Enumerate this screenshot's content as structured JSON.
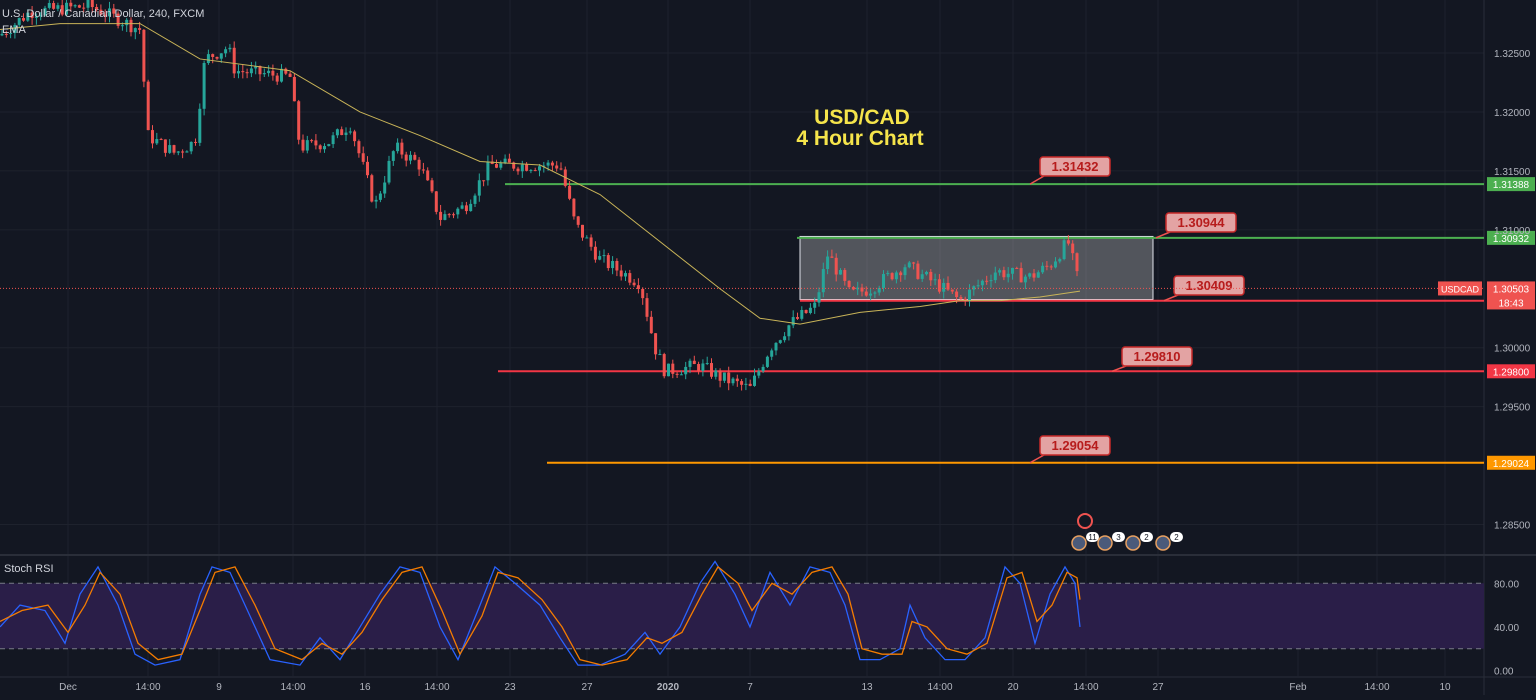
{
  "header": {
    "symbol_line": "U.S. Dollar / Canadian Dollar, 240, FXCM",
    "indicator": "EMA"
  },
  "chart_data": [
    {
      "type": "candlestick",
      "title": "USD/CAD",
      "subtitle": "4 Hour Chart",
      "x_ticks": [
        "Dec",
        "14:00",
        "9",
        "14:00",
        "16",
        "14:00",
        "23",
        "27",
        "2020",
        "7",
        "13",
        "14:00",
        "20",
        "14:00",
        "27",
        "Feb",
        "14:00",
        "10"
      ],
      "y_ticks": [
        "1.32500",
        "1.32000",
        "1.31500",
        "1.31000",
        "1.30000",
        "1.29500",
        "1.28500"
      ],
      "ylim": [
        1.2825,
        1.3295
      ],
      "ema_approx": [
        [
          0,
          1.327
        ],
        [
          60,
          1.3275
        ],
        [
          140,
          1.3275
        ],
        [
          200,
          1.3245
        ],
        [
          290,
          1.3235
        ],
        [
          360,
          1.32
        ],
        [
          420,
          1.318
        ],
        [
          480,
          1.3158
        ],
        [
          540,
          1.3155
        ],
        [
          600,
          1.313
        ],
        [
          660,
          1.309
        ],
        [
          720,
          1.305
        ],
        [
          760,
          1.3025
        ],
        [
          800,
          1.302
        ],
        [
          860,
          1.303
        ],
        [
          920,
          1.3035
        ],
        [
          960,
          1.304
        ],
        [
          1000,
          1.304
        ],
        [
          1040,
          1.3043
        ],
        [
          1080,
          1.3048
        ]
      ],
      "price_path": [
        [
          0,
          1.3265
        ],
        [
          30,
          1.3285
        ],
        [
          90,
          1.329
        ],
        [
          140,
          1.327
        ],
        [
          148,
          1.318
        ],
        [
          175,
          1.3165
        ],
        [
          195,
          1.3175
        ],
        [
          205,
          1.3245
        ],
        [
          228,
          1.3255
        ],
        [
          235,
          1.3235
        ],
        [
          290,
          1.323
        ],
        [
          300,
          1.317
        ],
        [
          330,
          1.3175
        ],
        [
          350,
          1.319
        ],
        [
          375,
          1.312
        ],
        [
          395,
          1.317
        ],
        [
          420,
          1.3155
        ],
        [
          440,
          1.311
        ],
        [
          465,
          1.312
        ],
        [
          490,
          1.3155
        ],
        [
          520,
          1.3155
        ],
        [
          560,
          1.3155
        ],
        [
          575,
          1.3105
        ],
        [
          600,
          1.3075
        ],
        [
          640,
          1.3055
        ],
        [
          655,
          1.3
        ],
        [
          665,
          1.298
        ],
        [
          700,
          1.2985
        ],
        [
          720,
          1.2975
        ],
        [
          750,
          1.2965
        ],
        [
          770,
          1.3
        ],
        [
          790,
          1.302
        ],
        [
          815,
          1.3035
        ],
        [
          828,
          1.308
        ],
        [
          850,
          1.3045
        ],
        [
          870,
          1.305
        ],
        [
          905,
          1.307
        ],
        [
          935,
          1.3055
        ],
        [
          960,
          1.304
        ],
        [
          995,
          1.3065
        ],
        [
          1030,
          1.306
        ],
        [
          1050,
          1.307
        ],
        [
          1068,
          1.309
        ],
        [
          1080,
          1.305
        ]
      ],
      "horizontal_levels": [
        {
          "label": "1.31432",
          "axis_label": "1.31388",
          "value": 1.31388,
          "color": "#4caf50"
        },
        {
          "label": "1.30944",
          "axis_label": "1.30932",
          "value": 1.30932,
          "color": "#4caf50"
        },
        {
          "label": "1.30409",
          "axis_label": "1.30399",
          "value": 1.30399,
          "color": "#f23645"
        },
        {
          "label": "1.29810",
          "axis_label": "1.29800",
          "value": 1.298,
          "color": "#f23645"
        },
        {
          "label": "1.29054",
          "axis_label": "1.29024",
          "value": 1.29024,
          "color": "#ff9800"
        }
      ],
      "range_box": {
        "top": 1.30944,
        "bottom": 1.30409
      },
      "current_price": {
        "symbol": "USDCAD",
        "value": "1.30503",
        "countdown": "18:43",
        "price": 1.30503
      },
      "event_badges": [
        "11",
        "3",
        "2",
        "2"
      ]
    },
    {
      "type": "line",
      "title": "Stoch RSI",
      "y_ticks": [
        "80.00",
        "40.00",
        "0.00"
      ],
      "ylim": [
        -5,
        105
      ],
      "band": [
        20,
        80
      ],
      "series": [
        {
          "color": "#2962ff",
          "values": [
            [
              0,
              40
            ],
            [
              20,
              60
            ],
            [
              45,
              55
            ],
            [
              65,
              25
            ],
            [
              80,
              70
            ],
            [
              98,
              95
            ],
            [
              118,
              60
            ],
            [
              135,
              15
            ],
            [
              155,
              5
            ],
            [
              180,
              10
            ],
            [
              200,
              70
            ],
            [
              212,
              95
            ],
            [
              230,
              90
            ],
            [
              250,
              50
            ],
            [
              270,
              10
            ],
            [
              300,
              5
            ],
            [
              320,
              30
            ],
            [
              340,
              10
            ],
            [
              360,
              40
            ],
            [
              380,
              70
            ],
            [
              400,
              95
            ],
            [
              420,
              90
            ],
            [
              440,
              40
            ],
            [
              458,
              10
            ],
            [
              480,
              60
            ],
            [
              495,
              95
            ],
            [
              515,
              80
            ],
            [
              540,
              60
            ],
            [
              560,
              30
            ],
            [
              578,
              5
            ],
            [
              600,
              5
            ],
            [
              625,
              15
            ],
            [
              645,
              35
            ],
            [
              660,
              15
            ],
            [
              680,
              40
            ],
            [
              700,
              80
            ],
            [
              715,
              100
            ],
            [
              735,
              70
            ],
            [
              750,
              40
            ],
            [
              770,
              90
            ],
            [
              790,
              60
            ],
            [
              810,
              95
            ],
            [
              830,
              90
            ],
            [
              845,
              60
            ],
            [
              860,
              10
            ],
            [
              880,
              10
            ],
            [
              900,
              20
            ],
            [
              910,
              60
            ],
            [
              925,
              30
            ],
            [
              945,
              10
            ],
            [
              965,
              10
            ],
            [
              985,
              30
            ],
            [
              1005,
              95
            ],
            [
              1020,
              80
            ],
            [
              1035,
              25
            ],
            [
              1050,
              70
            ],
            [
              1065,
              95
            ],
            [
              1075,
              80
            ],
            [
              1080,
              40
            ]
          ]
        },
        {
          "color": "#f57c00",
          "values": [
            [
              0,
              45
            ],
            [
              22,
              55
            ],
            [
              48,
              60
            ],
            [
              68,
              35
            ],
            [
              85,
              60
            ],
            [
              100,
              90
            ],
            [
              120,
              70
            ],
            [
              138,
              25
            ],
            [
              158,
              10
            ],
            [
              182,
              15
            ],
            [
              202,
              60
            ],
            [
              215,
              90
            ],
            [
              235,
              95
            ],
            [
              255,
              60
            ],
            [
              275,
              20
            ],
            [
              302,
              10
            ],
            [
              322,
              25
            ],
            [
              342,
              15
            ],
            [
              362,
              35
            ],
            [
              382,
              65
            ],
            [
              402,
              90
            ],
            [
              422,
              95
            ],
            [
              442,
              55
            ],
            [
              460,
              15
            ],
            [
              482,
              50
            ],
            [
              498,
              90
            ],
            [
              518,
              85
            ],
            [
              542,
              65
            ],
            [
              562,
              40
            ],
            [
              580,
              10
            ],
            [
              602,
              5
            ],
            [
              627,
              10
            ],
            [
              647,
              30
            ],
            [
              662,
              25
            ],
            [
              682,
              35
            ],
            [
              702,
              70
            ],
            [
              718,
              95
            ],
            [
              738,
              80
            ],
            [
              752,
              55
            ],
            [
              772,
              80
            ],
            [
              792,
              70
            ],
            [
              812,
              90
            ],
            [
              832,
              95
            ],
            [
              848,
              70
            ],
            [
              862,
              20
            ],
            [
              882,
              15
            ],
            [
              902,
              15
            ],
            [
              912,
              45
            ],
            [
              927,
              40
            ],
            [
              947,
              20
            ],
            [
              967,
              15
            ],
            [
              987,
              25
            ],
            [
              1007,
              85
            ],
            [
              1022,
              90
            ],
            [
              1037,
              45
            ],
            [
              1052,
              60
            ],
            [
              1067,
              90
            ],
            [
              1077,
              85
            ],
            [
              1080,
              65
            ]
          ]
        }
      ]
    }
  ]
}
